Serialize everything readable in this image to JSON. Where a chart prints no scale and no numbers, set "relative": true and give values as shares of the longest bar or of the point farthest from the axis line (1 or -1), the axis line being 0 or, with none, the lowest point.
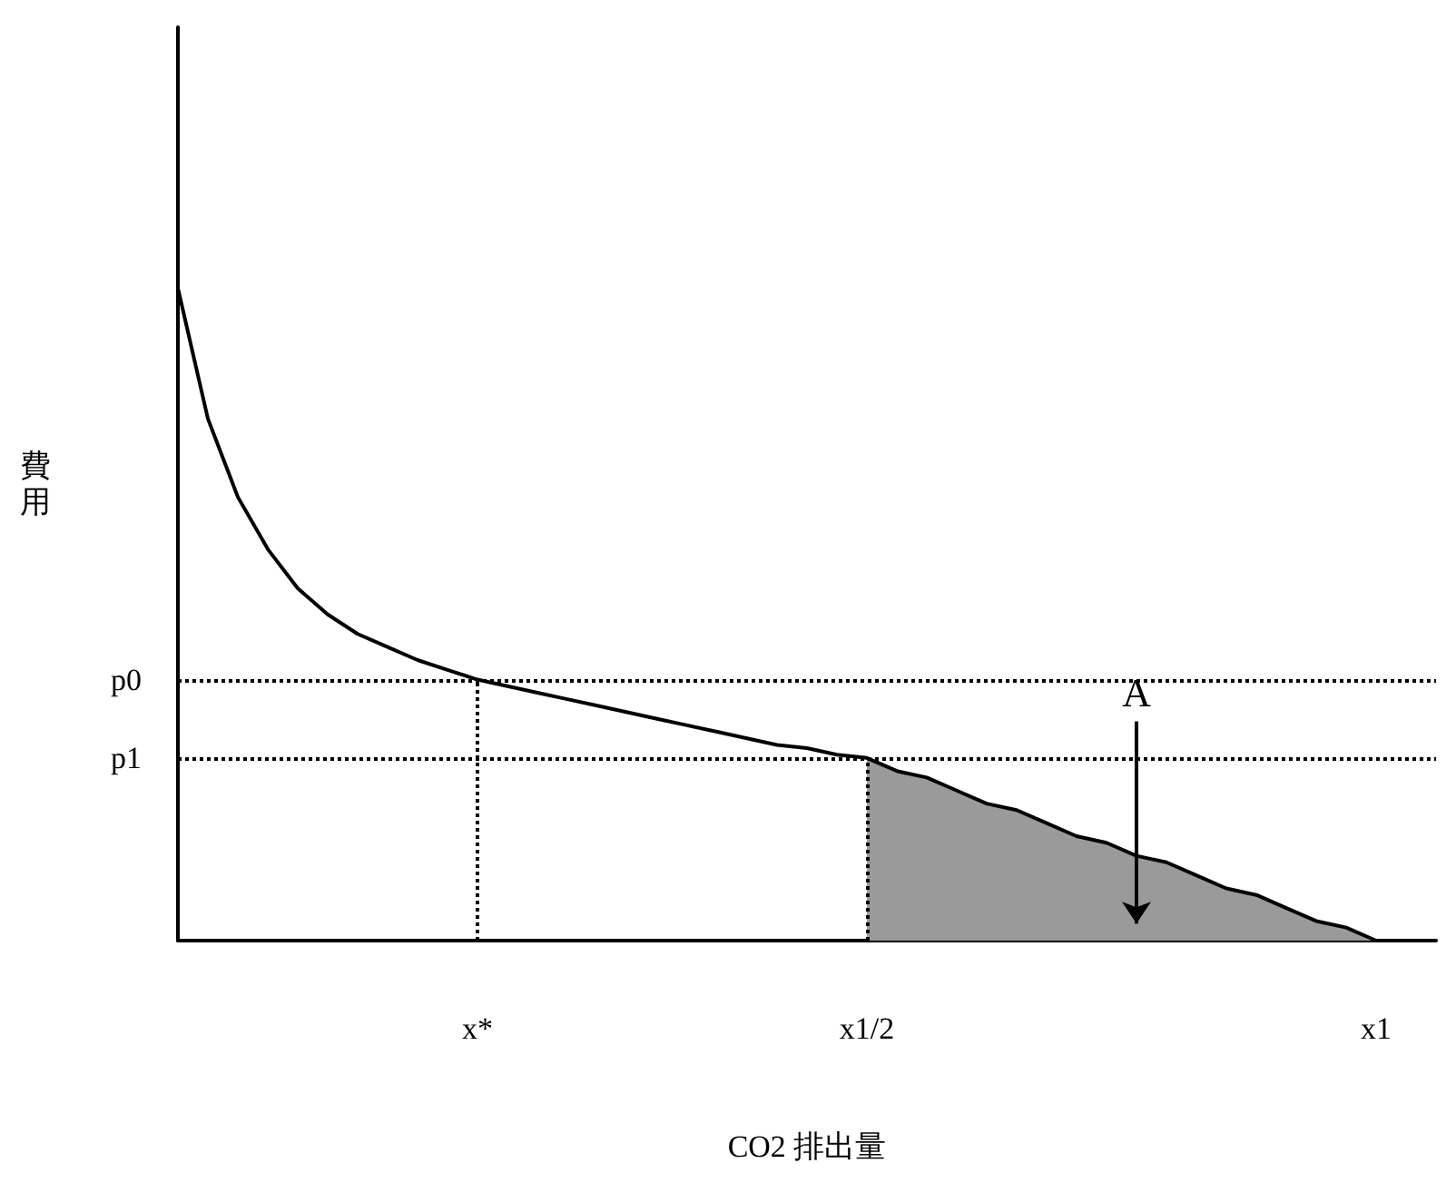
{
  "chart_data": {
    "type": "line",
    "relative": true,
    "xlabel": "CO2 排出量",
    "ylabel": "費用",
    "line_style": "solid",
    "grid": false,
    "categories": [
      null,
      null,
      null,
      null,
      null,
      null,
      null,
      null,
      null,
      null,
      "x*",
      null,
      null,
      null,
      null,
      null,
      null,
      null,
      null,
      null,
      null,
      null,
      null,
      "x1/2",
      null,
      null,
      null,
      null,
      null,
      null,
      null,
      null,
      null,
      null,
      null,
      null,
      null,
      null,
      null,
      null,
      "x1",
      null,
      null
    ],
    "series": [
      {
        "color": "#000000",
        "values": [
          1.0,
          0.8,
          0.68,
          0.6,
          0.54,
          0.5,
          0.47,
          0.45,
          0.43,
          0.415,
          0.4,
          0.39,
          0.38,
          0.37,
          0.36,
          0.35,
          0.34,
          0.33,
          0.32,
          0.31,
          0.3,
          0.295,
          0.285,
          0.28,
          0.26,
          0.25,
          0.23,
          0.21,
          0.2,
          0.18,
          0.16,
          0.15,
          0.13,
          0.12,
          0.1,
          0.08,
          0.07,
          0.05,
          0.03,
          0.02,
          0,
          null,
          null
        ]
      },
      {
        "type": "area",
        "color": "#9a9a9a",
        "values": [
          null,
          null,
          null,
          null,
          null,
          null,
          null,
          null,
          null,
          null,
          null,
          null,
          null,
          null,
          null,
          null,
          null,
          null,
          null,
          null,
          null,
          null,
          null,
          0.28,
          0.26,
          0.25,
          0.23,
          0.21,
          0.2,
          0.18,
          0.16,
          0.15,
          0.13,
          0.12,
          0.1,
          0.08,
          0.07,
          0.05,
          0.03,
          0.02,
          0,
          null,
          null
        ]
      }
    ],
    "annotations": [
      "A"
    ],
    "ref_lines": [
      {
        "axis": "y",
        "value": 0.4,
        "label": "p0",
        "line_style": "dotted"
      },
      {
        "axis": "y",
        "value": 0.28,
        "label": "p1",
        "line_style": "dotted"
      },
      {
        "axis": "x",
        "value": "x*",
        "label": null,
        "line_style": "dotted"
      },
      {
        "axis": "x",
        "value": "x1/2",
        "label": null,
        "line_style": "dotted"
      }
    ]
  }
}
